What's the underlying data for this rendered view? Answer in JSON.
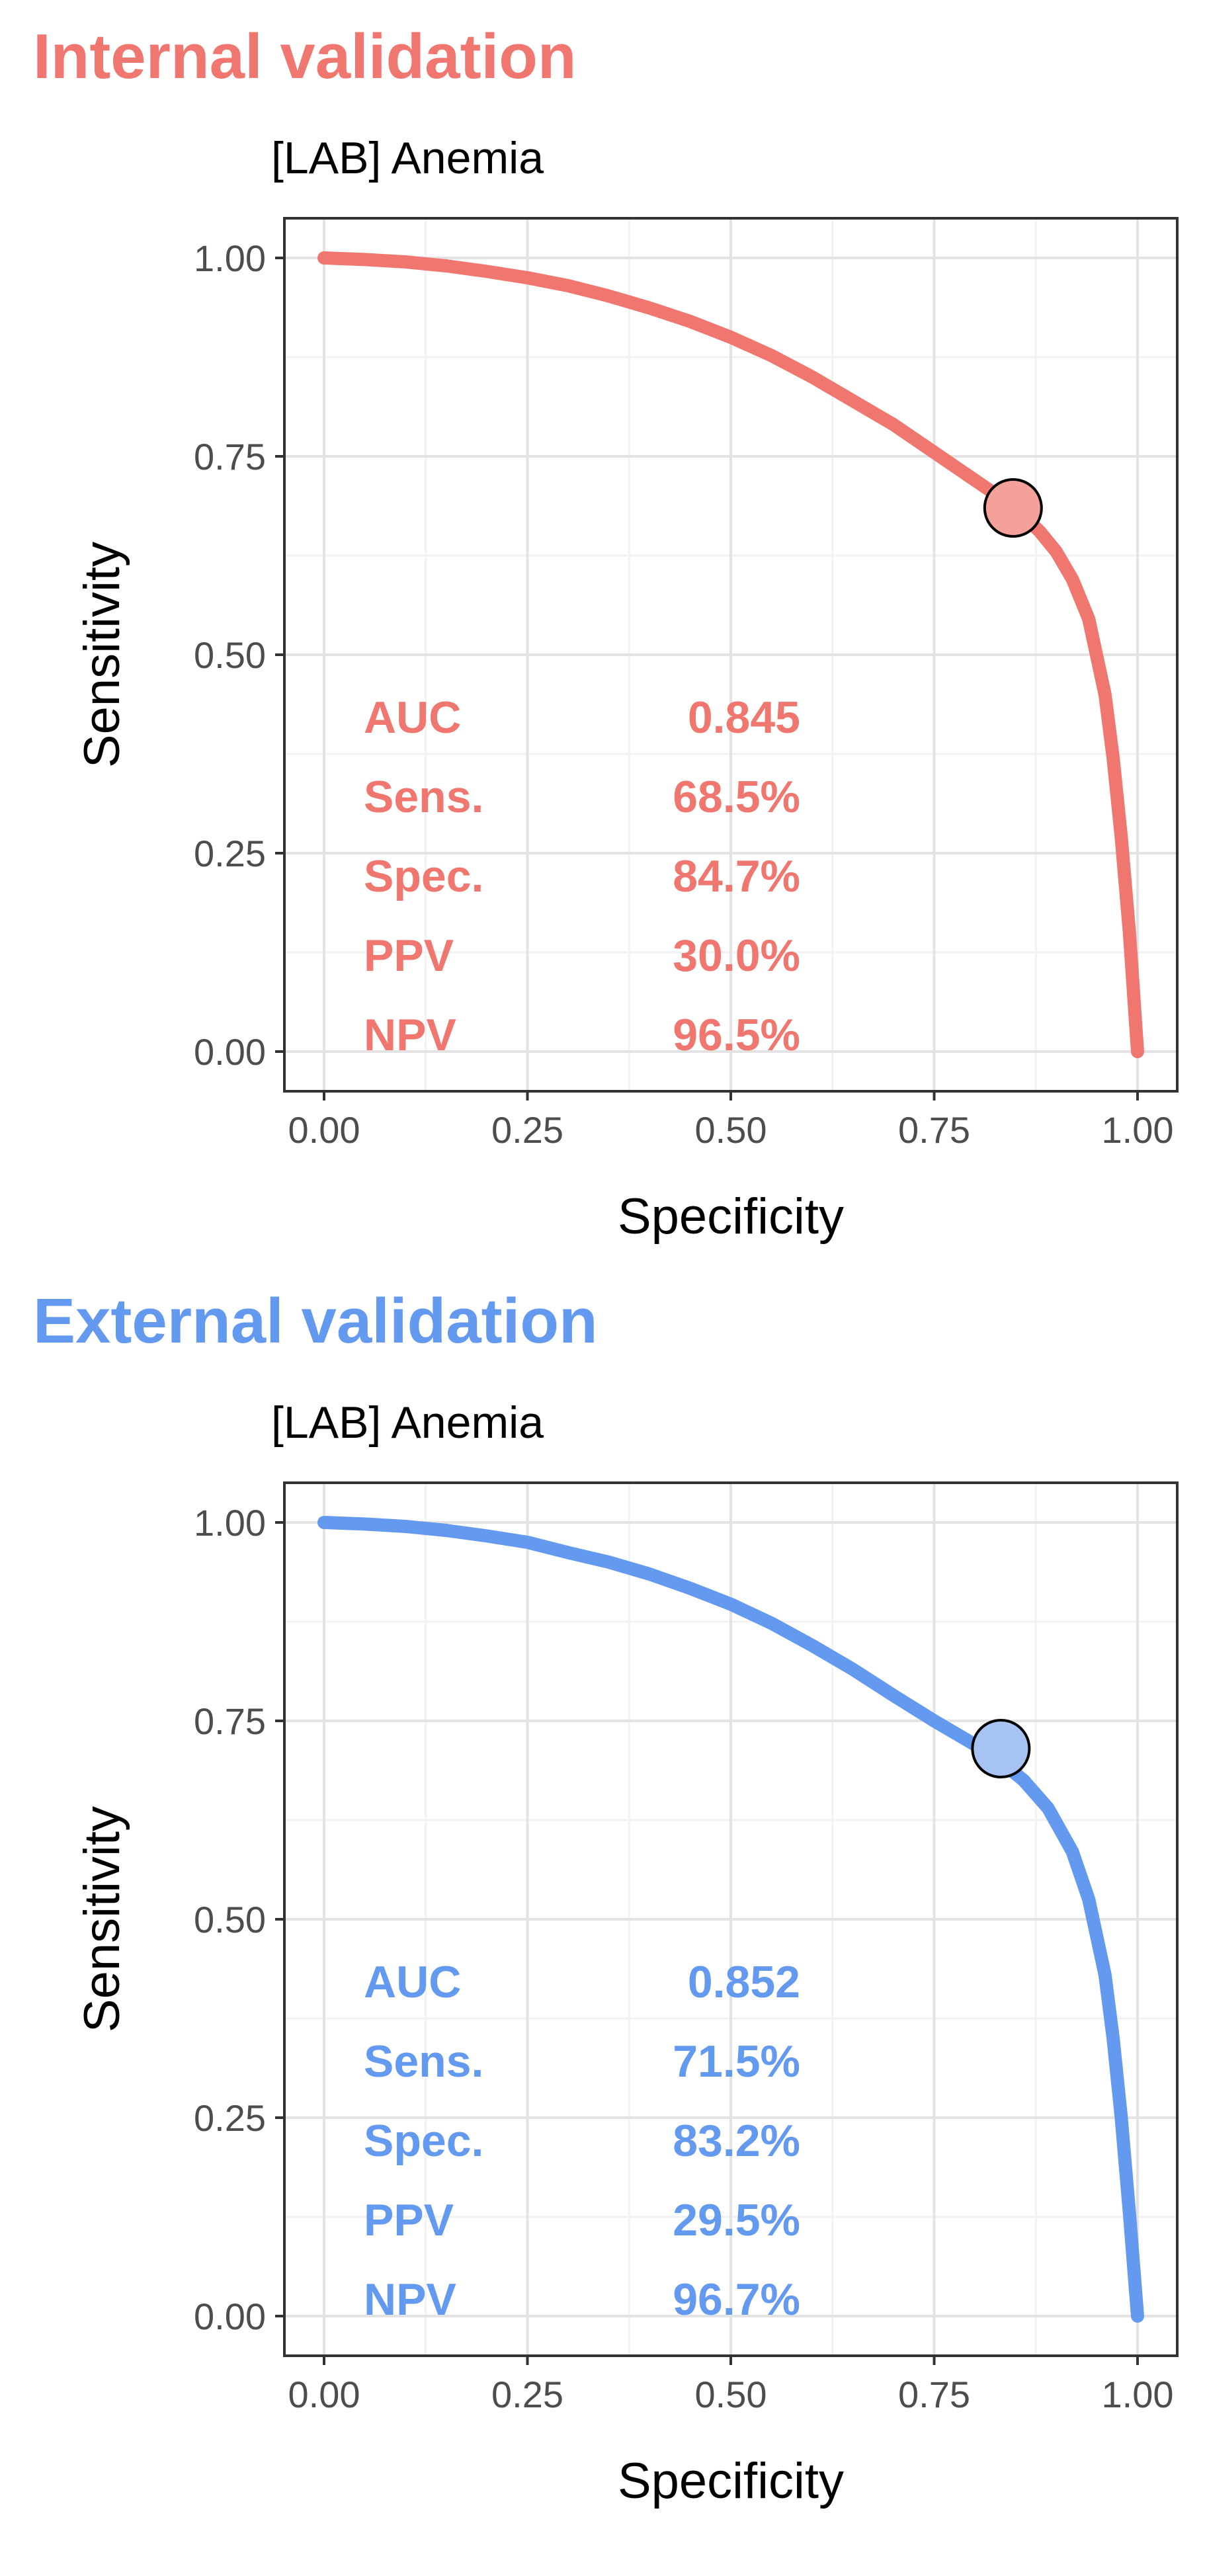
{
  "chart_data": [
    {
      "type": "line",
      "heading": "Internal validation",
      "title": "[LAB] Anemia",
      "xlabel": "Specificity",
      "ylabel": "Sensitivity",
      "xlim": [
        0,
        1
      ],
      "ylim": [
        0,
        1
      ],
      "x_reversed": false,
      "xticks": [
        "0.00",
        "0.25",
        "0.50",
        "0.75",
        "1.00"
      ],
      "yticks": [
        "0.00",
        "0.25",
        "0.50",
        "0.75",
        "1.00"
      ],
      "grid": true,
      "color": "#F0776F",
      "point_fill": "#F4A19B",
      "curve": {
        "specificity": [
          0.0,
          0.05,
          0.1,
          0.15,
          0.2,
          0.25,
          0.3,
          0.35,
          0.4,
          0.45,
          0.5,
          0.55,
          0.6,
          0.65,
          0.7,
          0.75,
          0.8,
          0.85,
          0.88,
          0.9,
          0.92,
          0.94,
          0.96,
          0.97,
          0.98,
          0.99,
          1.0
        ],
        "sensitivity": [
          1.0,
          0.998,
          0.995,
          0.99,
          0.983,
          0.975,
          0.965,
          0.952,
          0.937,
          0.92,
          0.9,
          0.877,
          0.85,
          0.82,
          0.79,
          0.755,
          0.72,
          0.685,
          0.655,
          0.63,
          0.595,
          0.545,
          0.45,
          0.37,
          0.27,
          0.15,
          0.0
        ]
      },
      "operating_point": {
        "specificity": 0.847,
        "sensitivity": 0.685
      },
      "metrics": [
        {
          "label": "AUC",
          "value": "0.845"
        },
        {
          "label": "Sens.",
          "value": "68.5%"
        },
        {
          "label": "Spec.",
          "value": "84.7%"
        },
        {
          "label": "PPV",
          "value": "30.0%"
        },
        {
          "label": "NPV",
          "value": "96.5%"
        }
      ]
    },
    {
      "type": "line",
      "heading": "External validation",
      "title": "[LAB] Anemia",
      "xlabel": "Specificity",
      "ylabel": "Sensitivity",
      "xlim": [
        0,
        1
      ],
      "ylim": [
        0,
        1
      ],
      "x_reversed": false,
      "xticks": [
        "0.00",
        "0.25",
        "0.50",
        "0.75",
        "1.00"
      ],
      "yticks": [
        "0.00",
        "0.25",
        "0.50",
        "0.75",
        "1.00"
      ],
      "grid": true,
      "color": "#6399EE",
      "point_fill": "#A7C3F2",
      "curve": {
        "specificity": [
          0.0,
          0.05,
          0.1,
          0.15,
          0.2,
          0.25,
          0.3,
          0.35,
          0.4,
          0.45,
          0.5,
          0.55,
          0.6,
          0.65,
          0.7,
          0.75,
          0.8,
          0.83,
          0.86,
          0.89,
          0.92,
          0.94,
          0.96,
          0.97,
          0.98,
          0.99,
          1.0
        ],
        "sensitivity": [
          1.0,
          0.998,
          0.995,
          0.99,
          0.983,
          0.975,
          0.962,
          0.95,
          0.935,
          0.917,
          0.897,
          0.873,
          0.845,
          0.815,
          0.782,
          0.75,
          0.72,
          0.7,
          0.675,
          0.64,
          0.585,
          0.525,
          0.43,
          0.35,
          0.25,
          0.13,
          0.0
        ]
      },
      "operating_point": {
        "specificity": 0.832,
        "sensitivity": 0.715
      },
      "metrics": [
        {
          "label": "AUC",
          "value": "0.852"
        },
        {
          "label": "Sens.",
          "value": "71.5%"
        },
        {
          "label": "Spec.",
          "value": "83.2%"
        },
        {
          "label": "PPV",
          "value": "29.5%"
        },
        {
          "label": "NPV",
          "value": "96.7%"
        }
      ]
    }
  ]
}
